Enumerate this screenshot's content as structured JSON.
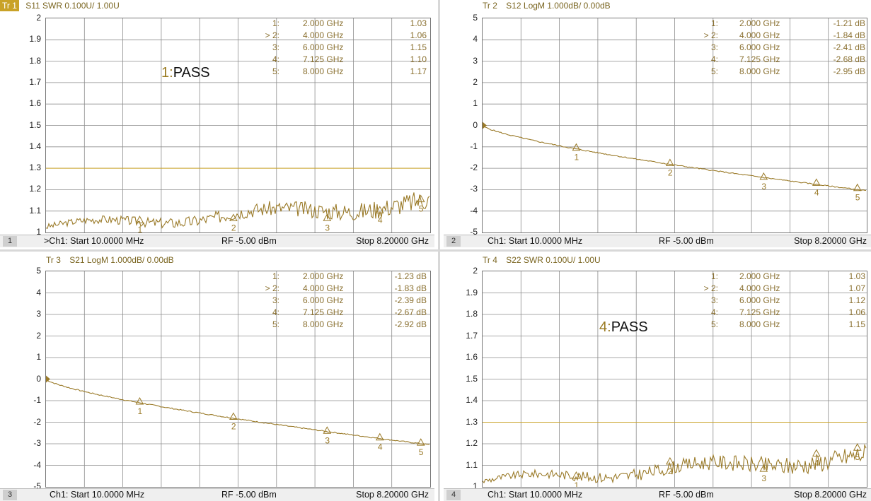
{
  "panels": [
    {
      "id": 1,
      "trace_title": "Tr 1",
      "trace_desc": "S11 SWR 0.100U/  1.00U",
      "active": true,
      "y_labels": [
        "2",
        "1.9",
        "1.8",
        "1.7",
        "1.6",
        "1.5",
        "1.4",
        "1.3",
        "1.2",
        "1.1",
        "1"
      ],
      "markers": [
        {
          "n": "1:",
          "f": "2.000 GHz",
          "v": "1.03"
        },
        {
          "n": "> 2:",
          "f": "4.000 GHz",
          "v": "1.06"
        },
        {
          "n": "3:",
          "f": "6.000 GHz",
          "v": "1.15"
        },
        {
          "n": "4:",
          "f": "7.125 GHz",
          "v": "1.10"
        },
        {
          "n": "5:",
          "f": "8.000 GHz",
          "v": "1.17"
        }
      ],
      "pass_num": "1:",
      "pass_text": "PASS",
      "footer_num": "1",
      "footer_start": ">Ch1:  Start  10.0000 MHz",
      "footer_rf": "RF  -5.00 dBm",
      "footer_stop": "Stop  8.20000 GHz"
    },
    {
      "id": 2,
      "trace_title": "Tr 2",
      "trace_desc": "S12 LogM 1.000dB/  0.00dB",
      "active": false,
      "y_labels": [
        "5",
        "4",
        "3",
        "2",
        "1",
        "0",
        "-1",
        "-2",
        "-3",
        "-4",
        "-5"
      ],
      "markers": [
        {
          "n": "1:",
          "f": "2.000 GHz",
          "v": "-1.21 dB"
        },
        {
          "n": "> 2:",
          "f": "4.000 GHz",
          "v": "-1.84 dB"
        },
        {
          "n": "3:",
          "f": "6.000 GHz",
          "v": "-2.41 dB"
        },
        {
          "n": "4:",
          "f": "7.125 GHz",
          "v": "-2.68 dB"
        },
        {
          "n": "5:",
          "f": "8.000 GHz",
          "v": "-2.95 dB"
        }
      ],
      "pass_num": "",
      "pass_text": "",
      "footer_num": "2",
      "footer_start": "Ch1:  Start  10.0000 MHz",
      "footer_rf": "RF  -5.00 dBm",
      "footer_stop": "Stop  8.20000 GHz"
    },
    {
      "id": 3,
      "trace_title": "Tr 3",
      "trace_desc": "S21 LogM 1.000dB/  0.00dB",
      "active": false,
      "y_labels": [
        "5",
        "4",
        "3",
        "2",
        "1",
        "0",
        "-1",
        "-2",
        "-3",
        "-4",
        "-5"
      ],
      "markers": [
        {
          "n": "1:",
          "f": "2.000 GHz",
          "v": "-1.23 dB"
        },
        {
          "n": "> 2:",
          "f": "4.000 GHz",
          "v": "-1.83 dB"
        },
        {
          "n": "3:",
          "f": "6.000 GHz",
          "v": "-2.39 dB"
        },
        {
          "n": "4:",
          "f": "7.125 GHz",
          "v": "-2.67 dB"
        },
        {
          "n": "5:",
          "f": "8.000 GHz",
          "v": "-2.92 dB"
        }
      ],
      "pass_num": "",
      "pass_text": "",
      "footer_num": "3",
      "footer_start": "Ch1:  Start  10.0000 MHz",
      "footer_rf": "RF  -5.00 dBm",
      "footer_stop": "Stop  8.20000 GHz"
    },
    {
      "id": 4,
      "trace_title": "Tr 4",
      "trace_desc": "S22 SWR 0.100U/  1.00U",
      "active": false,
      "y_labels": [
        "2",
        "1.9",
        "1.8",
        "1.7",
        "1.6",
        "1.5",
        "1.4",
        "1.3",
        "1.2",
        "1.1",
        "1"
      ],
      "markers": [
        {
          "n": "1:",
          "f": "2.000 GHz",
          "v": "1.03"
        },
        {
          "n": "> 2:",
          "f": "4.000 GHz",
          "v": "1.07"
        },
        {
          "n": "3:",
          "f": "6.000 GHz",
          "v": "1.12"
        },
        {
          "n": "4:",
          "f": "7.125 GHz",
          "v": "1.06"
        },
        {
          "n": "5:",
          "f": "8.000 GHz",
          "v": "1.15"
        }
      ],
      "pass_num": "4:",
      "pass_text": "PASS",
      "footer_num": "4",
      "footer_start": "Ch1:  Start  10.0000 MHz",
      "footer_rf": "RF  -5.00 dBm",
      "footer_stop": "Stop  8.20000 GHz"
    }
  ],
  "colors": {
    "trace": "#9a7a28",
    "limit": "#c9a227",
    "grid": "#8c8c8c",
    "text": "#7a6520"
  }
}
